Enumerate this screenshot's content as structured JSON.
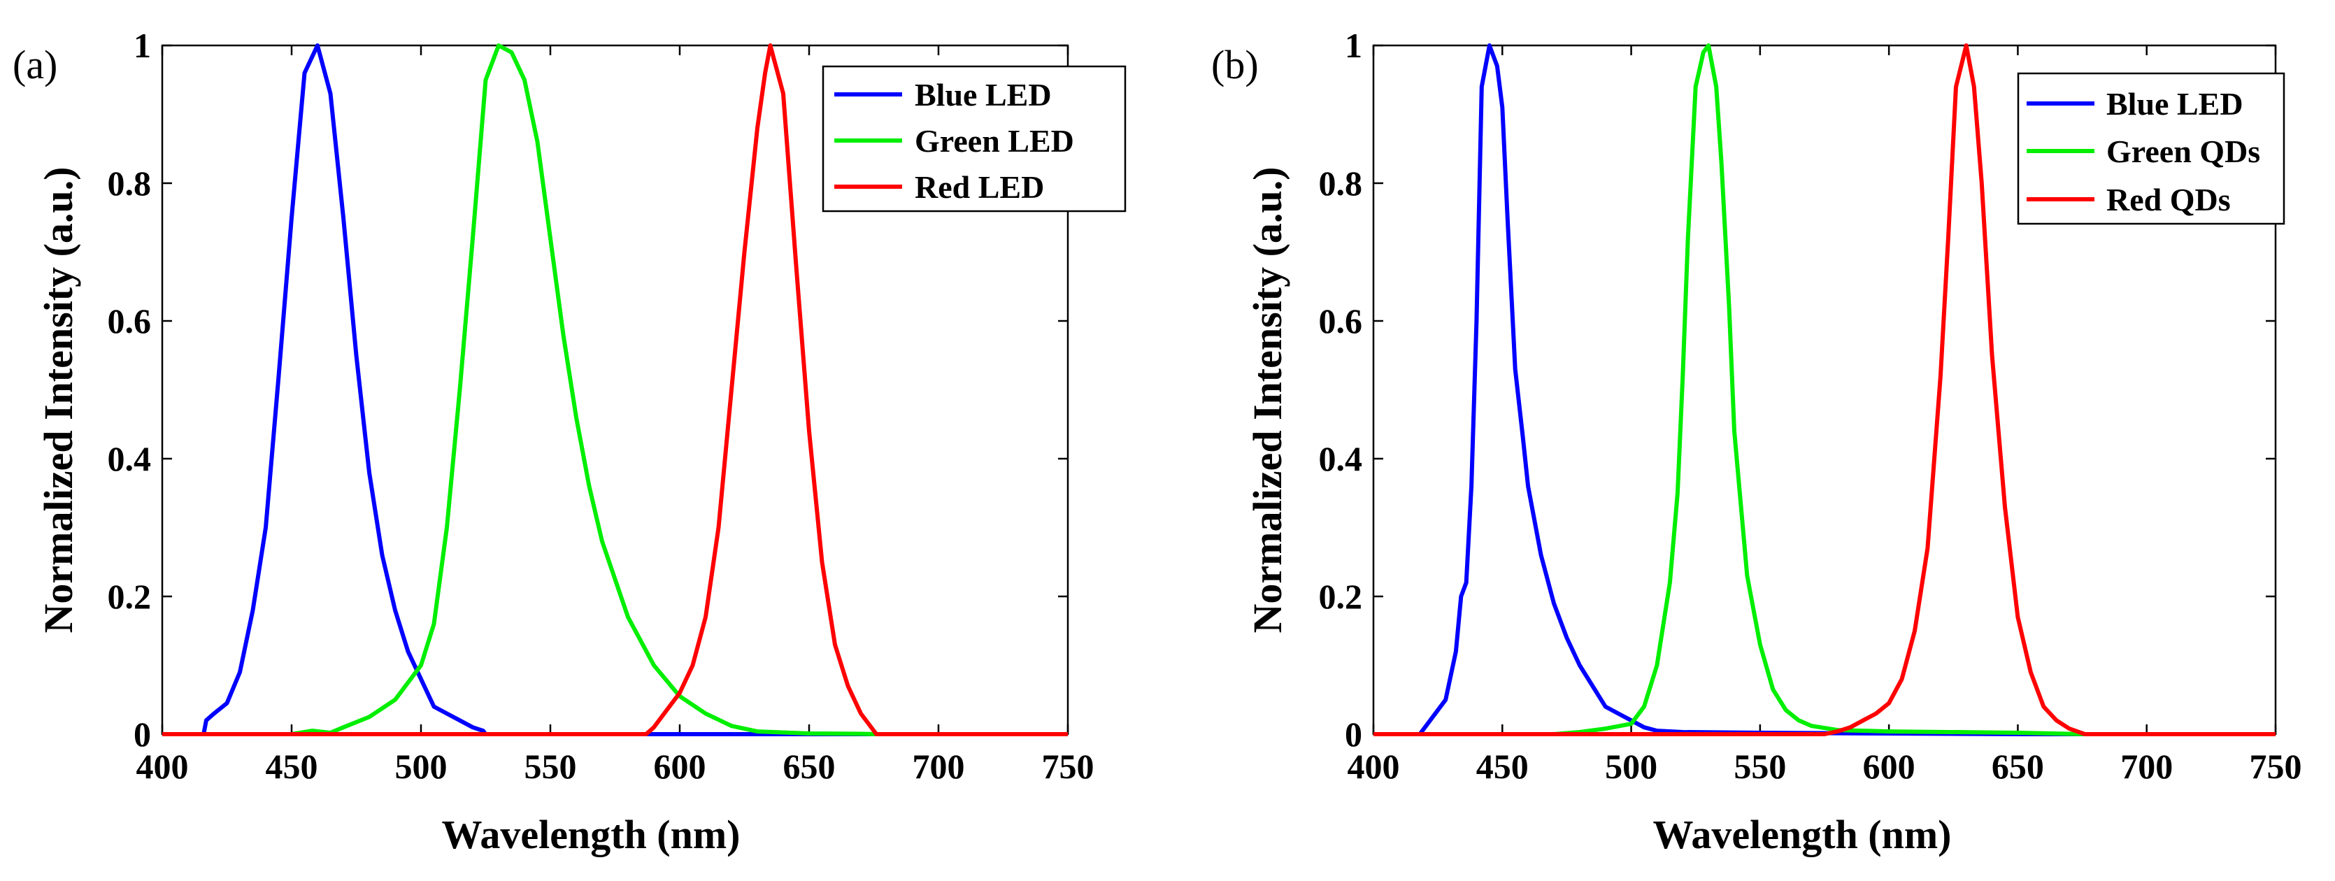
{
  "chart_data": [
    {
      "type": "line",
      "panel_label": "(a)",
      "xlabel": "Wavelength (nm)",
      "ylabel": "Normalized Intensity (a.u.)",
      "xlim": [
        400,
        750
      ],
      "ylim": [
        0,
        1
      ],
      "xticks": [
        "400",
        "450",
        "500",
        "550",
        "600",
        "650",
        "700",
        "750"
      ],
      "yticks": [
        "0",
        "0.2",
        "0.4",
        "0.6",
        "0.8",
        "1"
      ],
      "legend_position": "top-right",
      "series": [
        {
          "name": "Blue LED",
          "color": "#0000FF",
          "x": [
            400,
            416,
            417,
            420,
            425,
            430,
            435,
            440,
            445,
            450,
            455,
            460,
            465,
            470,
            475,
            480,
            485,
            490,
            495,
            500,
            505,
            510,
            515,
            520,
            524,
            525,
            600,
            750
          ],
          "y": [
            0,
            0,
            0.02,
            0.03,
            0.045,
            0.09,
            0.18,
            0.3,
            0.52,
            0.75,
            0.96,
            1.0,
            0.93,
            0.75,
            0.55,
            0.38,
            0.26,
            0.18,
            0.12,
            0.08,
            0.04,
            0.03,
            0.02,
            0.01,
            0.005,
            0,
            0,
            0
          ]
        },
        {
          "name": "Green LED",
          "color": "#00EE00",
          "x": [
            400,
            450,
            458,
            465,
            470,
            480,
            490,
            500,
            505,
            510,
            515,
            520,
            525,
            530,
            535,
            540,
            545,
            550,
            555,
            560,
            565,
            570,
            580,
            590,
            600,
            610,
            620,
            630,
            650,
            670,
            676,
            750
          ],
          "y": [
            0,
            0,
            0.005,
            0.002,
            0.01,
            0.025,
            0.05,
            0.1,
            0.16,
            0.3,
            0.5,
            0.72,
            0.95,
            1.0,
            0.99,
            0.95,
            0.86,
            0.72,
            0.58,
            0.46,
            0.36,
            0.28,
            0.17,
            0.1,
            0.055,
            0.03,
            0.012,
            0.004,
            0.001,
            0.0005,
            0,
            0
          ]
        },
        {
          "name": "Red LED",
          "color": "#FF0000",
          "x": [
            400,
            587,
            590,
            595,
            600,
            605,
            610,
            615,
            620,
            625,
            630,
            633,
            635,
            640,
            645,
            650,
            655,
            660,
            665,
            670,
            676,
            750
          ],
          "y": [
            0,
            0,
            0.01,
            0.035,
            0.06,
            0.1,
            0.17,
            0.3,
            0.5,
            0.7,
            0.88,
            0.96,
            1.0,
            0.93,
            0.68,
            0.44,
            0.25,
            0.13,
            0.07,
            0.03,
            0,
            0
          ]
        }
      ]
    },
    {
      "type": "line",
      "panel_label": "(b)",
      "xlabel": "Wavelength (nm)",
      "ylabel": "Normalized Intensity (a.u.)",
      "xlim": [
        400,
        750
      ],
      "ylim": [
        0,
        1
      ],
      "xticks": [
        "400",
        "450",
        "500",
        "550",
        "600",
        "650",
        "700",
        "750"
      ],
      "yticks": [
        "0",
        "0.2",
        "0.4",
        "0.6",
        "0.8",
        "1"
      ],
      "legend_position": "top-right",
      "series": [
        {
          "name": "Blue LED",
          "color": "#0000FF",
          "x": [
            400,
            418,
            422,
            428,
            432,
            434,
            436,
            438,
            440,
            442,
            445,
            448,
            450,
            452,
            455,
            458,
            460,
            465,
            470,
            475,
            480,
            485,
            490,
            495,
            500,
            505,
            510,
            520,
            550,
            600,
            650,
            750
          ],
          "y": [
            0,
            0,
            0.02,
            0.05,
            0.12,
            0.2,
            0.22,
            0.36,
            0.6,
            0.94,
            1.0,
            0.97,
            0.91,
            0.75,
            0.53,
            0.43,
            0.36,
            0.26,
            0.19,
            0.14,
            0.1,
            0.07,
            0.04,
            0.03,
            0.02,
            0.01,
            0.005,
            0.003,
            0.002,
            0.001,
            0,
            0
          ]
        },
        {
          "name": "Green QDs",
          "color": "#00EE00",
          "x": [
            400,
            470,
            480,
            490,
            500,
            505,
            510,
            515,
            518,
            520,
            522,
            525,
            528,
            530,
            533,
            535,
            538,
            540,
            545,
            550,
            555,
            560,
            565,
            570,
            580,
            600,
            650,
            676,
            750
          ],
          "y": [
            0,
            0,
            0.003,
            0.008,
            0.015,
            0.04,
            0.1,
            0.22,
            0.35,
            0.52,
            0.72,
            0.94,
            0.99,
            1.0,
            0.94,
            0.83,
            0.62,
            0.44,
            0.23,
            0.13,
            0.065,
            0.035,
            0.02,
            0.012,
            0.006,
            0.004,
            0.002,
            0,
            0
          ]
        },
        {
          "name": "Red QDs",
          "color": "#FF0000",
          "x": [
            400,
            575,
            580,
            585,
            590,
            595,
            600,
            605,
            610,
            615,
            620,
            623,
            626,
            630,
            633,
            636,
            640,
            645,
            650,
            655,
            660,
            665,
            670,
            676,
            750
          ],
          "y": [
            0,
            0,
            0.004,
            0.01,
            0.02,
            0.03,
            0.045,
            0.08,
            0.15,
            0.27,
            0.52,
            0.72,
            0.94,
            1.0,
            0.94,
            0.8,
            0.55,
            0.33,
            0.17,
            0.09,
            0.04,
            0.02,
            0.008,
            0,
            0
          ]
        }
      ]
    }
  ]
}
